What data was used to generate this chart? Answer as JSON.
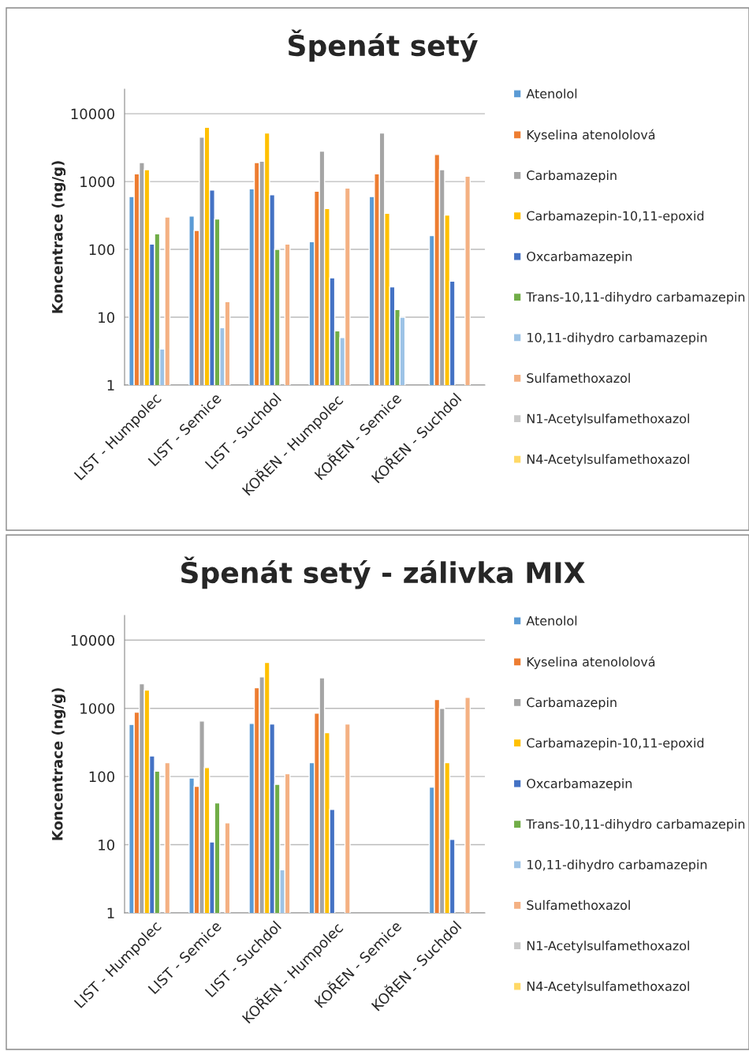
{
  "chart_data": [
    {
      "type": "bar",
      "title": "Špenát setý",
      "ylabel": "Koncentrace (ng/g)",
      "log": true,
      "ylim": [
        1,
        23000
      ],
      "yticks": [
        1,
        10,
        100,
        1000,
        10000
      ],
      "grid": "y",
      "legend": "right",
      "categories": [
        "LIST - Humpolec",
        "LIST - Semice",
        "LIST - Suchdol",
        "KOŘEN - Humpolec",
        "KOŘEN - Semice",
        "KOŘEN - Suchdol"
      ],
      "series": [
        {
          "name": "Atenolol",
          "color": "#5b9bd5",
          "values": [
            600,
            310,
            780,
            130,
            600,
            160
          ]
        },
        {
          "name": "Kyselina atenololová",
          "color": "#ed7d31",
          "values": [
            1300,
            190,
            1900,
            720,
            1300,
            2500
          ]
        },
        {
          "name": "Carbamazepin",
          "color": "#a5a5a5",
          "values": [
            1900,
            4500,
            2000,
            2800,
            5200,
            1500
          ]
        },
        {
          "name": "Carbamazepin-10,11-epoxid",
          "color": "#ffc000",
          "values": [
            1500,
            6300,
            5200,
            400,
            340,
            320
          ]
        },
        {
          "name": "Oxcarbamazepin",
          "color": "#4472c4",
          "values": [
            120,
            750,
            640,
            38,
            28,
            34
          ]
        },
        {
          "name": "Trans-10,11-dihydro carbamazepin",
          "color": "#70ad47",
          "values": [
            170,
            280,
            100,
            6.3,
            13,
            null
          ]
        },
        {
          "name": "10,11-dihydro carbamazepin",
          "color": "#9dc3e6",
          "values": [
            3.4,
            7,
            null,
            5,
            10,
            null
          ]
        },
        {
          "name": "Sulfamethoxazol",
          "color": "#f4b183",
          "values": [
            300,
            17,
            120,
            800,
            null,
            1200
          ]
        },
        {
          "name": "N1-Acetylsulfamethoxazol",
          "color": "#c9c9c9",
          "values": [
            null,
            null,
            null,
            null,
            null,
            null
          ]
        },
        {
          "name": "N4-Acetylsulfamethoxazol",
          "color": "#ffd966",
          "values": [
            null,
            null,
            null,
            null,
            null,
            null
          ]
        }
      ]
    },
    {
      "type": "bar",
      "title": "Špenát setý - zálivka MIX",
      "ylabel": "Koncentrace (ng/g)",
      "log": true,
      "ylim": [
        1,
        23000
      ],
      "yticks": [
        1,
        10,
        100,
        1000,
        10000
      ],
      "grid": "y",
      "legend": "right",
      "categories": [
        "LIST - Humpolec",
        "LIST - Semice",
        "LIST - Suchdol",
        "KOŘEN - Humpolec",
        "KOŘEN - Semice",
        "KOŘEN - Suchdol"
      ],
      "series": [
        {
          "name": "Atenolol",
          "color": "#5b9bd5",
          "values": [
            580,
            95,
            600,
            160,
            null,
            70
          ]
        },
        {
          "name": "Kyselina atenololová",
          "color": "#ed7d31",
          "values": [
            880,
            72,
            2000,
            850,
            null,
            1350
          ]
        },
        {
          "name": "Carbamazepin",
          "color": "#a5a5a5",
          "values": [
            2300,
            650,
            2900,
            2800,
            null,
            1000
          ]
        },
        {
          "name": "Carbamazepin-10,11-epoxid",
          "color": "#ffc000",
          "values": [
            1850,
            135,
            4700,
            440,
            null,
            160
          ]
        },
        {
          "name": "Oxcarbamazepin",
          "color": "#4472c4",
          "values": [
            200,
            11,
            590,
            33,
            null,
            12
          ]
        },
        {
          "name": "Trans-10,11-dihydro carbamazepin",
          "color": "#70ad47",
          "values": [
            120,
            41,
            77,
            null,
            null,
            null
          ]
        },
        {
          "name": "10,11-dihydro carbamazepin",
          "color": "#9dc3e6",
          "values": [
            null,
            null,
            4.3,
            null,
            null,
            null
          ]
        },
        {
          "name": "Sulfamethoxazol",
          "color": "#f4b183",
          "values": [
            160,
            21,
            110,
            590,
            null,
            1450
          ]
        },
        {
          "name": "N1-Acetylsulfamethoxazol",
          "color": "#c9c9c9",
          "values": [
            null,
            null,
            null,
            null,
            null,
            null
          ]
        },
        {
          "name": "N4-Acetylsulfamethoxazol",
          "color": "#ffd966",
          "values": [
            null,
            null,
            null,
            null,
            null,
            null
          ]
        }
      ]
    }
  ]
}
